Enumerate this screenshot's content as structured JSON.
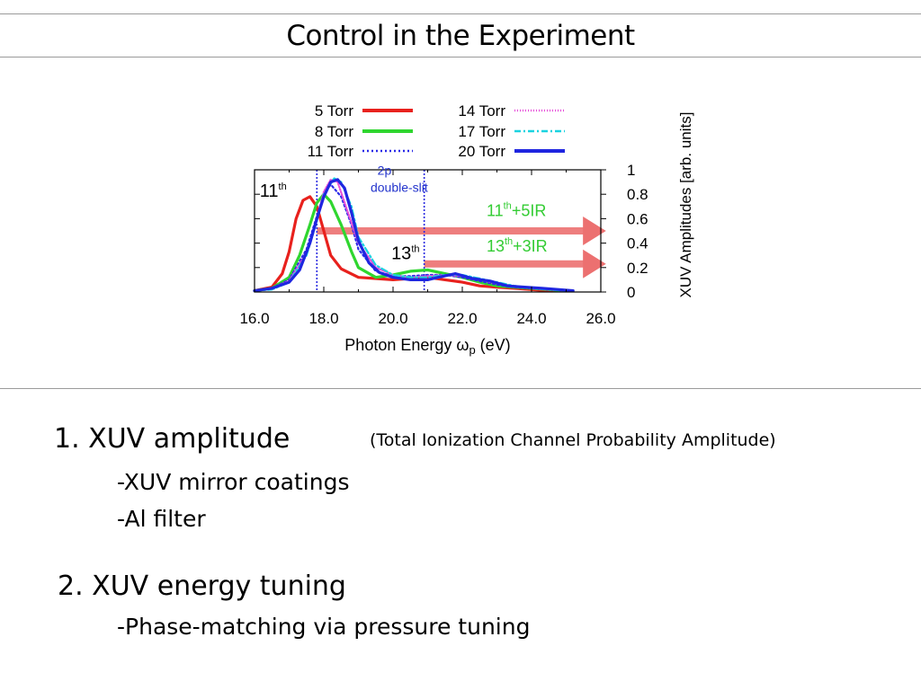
{
  "slide": {
    "title": "Control in the Experiment",
    "points": [
      {
        "heading": "1. XUV amplitude",
        "note": "(Total Ionization Channel Probability Amplitude)",
        "items": [
          "-XUV mirror coatings",
          "-Al filter"
        ]
      },
      {
        "heading": "2. XUV energy tuning",
        "items": [
          "-Phase-matching via pressure tuning"
        ]
      }
    ]
  },
  "chart_data": {
    "type": "line",
    "xlabel": "Photon Energy ω_p (eV)",
    "ylabel": "XUV Amplitudes [arb. units]",
    "xlim": [
      16.0,
      26.0
    ],
    "ylim": [
      0,
      1
    ],
    "xticks": [
      "16.0",
      "18.0",
      "20.0",
      "22.0",
      "24.0",
      "26.0"
    ],
    "yticks": [
      "0",
      "0.2",
      "0.4",
      "0.6",
      "0.8",
      "1"
    ],
    "vlines": [
      17.8,
      20.9
    ],
    "series": [
      {
        "name": "5 Torr",
        "color": "#e8211d",
        "dash": "solid",
        "x": [
          16.0,
          16.5,
          16.8,
          17.0,
          17.2,
          17.4,
          17.6,
          17.8,
          18.0,
          18.2,
          18.5,
          19.0,
          19.5,
          20.0,
          20.5,
          21.0,
          21.5,
          22.0,
          22.5,
          23.0,
          23.5,
          24.0,
          24.5,
          25.0
        ],
        "y": [
          0.01,
          0.04,
          0.15,
          0.33,
          0.6,
          0.75,
          0.78,
          0.7,
          0.5,
          0.3,
          0.19,
          0.12,
          0.11,
          0.1,
          0.11,
          0.12,
          0.1,
          0.08,
          0.05,
          0.04,
          0.03,
          0.02,
          0.01,
          0.01
        ]
      },
      {
        "name": "8 Torr",
        "color": "#2fd62f",
        "dash": "solid",
        "x": [
          16.0,
          16.5,
          17.0,
          17.3,
          17.6,
          17.8,
          18.0,
          18.2,
          18.5,
          18.8,
          19.0,
          19.5,
          20.0,
          20.5,
          21.0,
          21.5,
          22.0,
          22.5,
          23.0,
          23.5,
          24.0,
          24.5,
          25.0
        ],
        "y": [
          0.01,
          0.03,
          0.12,
          0.3,
          0.55,
          0.73,
          0.8,
          0.74,
          0.55,
          0.33,
          0.2,
          0.12,
          0.14,
          0.17,
          0.18,
          0.15,
          0.12,
          0.08,
          0.05,
          0.04,
          0.03,
          0.02,
          0.01
        ]
      },
      {
        "name": "11 Torr",
        "color": "#2b2be8",
        "dash": "2,3",
        "x": [
          16.0,
          16.5,
          17.0,
          17.5,
          17.8,
          18.0,
          18.2,
          18.5,
          18.8,
          19.0,
          19.5,
          20.0,
          20.5,
          21.0,
          21.5,
          22.0,
          22.5,
          23.0,
          23.5,
          24.0,
          24.5,
          25.0
        ],
        "y": [
          0.01,
          0.03,
          0.1,
          0.35,
          0.62,
          0.8,
          0.88,
          0.78,
          0.55,
          0.35,
          0.17,
          0.13,
          0.13,
          0.14,
          0.14,
          0.12,
          0.09,
          0.06,
          0.04,
          0.03,
          0.02,
          0.01
        ]
      },
      {
        "name": "14 Torr",
        "color": "#e64ed9",
        "dash": "1,2",
        "x": [
          16.0,
          16.5,
          17.0,
          17.5,
          17.8,
          18.0,
          18.2,
          18.4,
          18.7,
          19.0,
          19.5,
          20.0,
          20.5,
          21.0,
          21.5,
          22.0,
          22.5,
          23.0,
          23.5,
          24.0,
          24.5,
          25.0
        ],
        "y": [
          0.01,
          0.03,
          0.09,
          0.32,
          0.6,
          0.82,
          0.92,
          0.9,
          0.65,
          0.4,
          0.2,
          0.14,
          0.12,
          0.13,
          0.14,
          0.13,
          0.1,
          0.07,
          0.05,
          0.03,
          0.02,
          0.01
        ]
      },
      {
        "name": "17 Torr",
        "color": "#19d3e0",
        "dash": "7,3,2,3",
        "x": [
          16.0,
          16.5,
          17.0,
          17.5,
          17.8,
          18.0,
          18.3,
          18.5,
          18.8,
          19.0,
          19.5,
          20.0,
          20.5,
          21.0,
          21.5,
          22.0,
          22.5,
          23.0,
          23.5,
          24.0,
          24.5,
          25.0
        ],
        "y": [
          0.01,
          0.02,
          0.08,
          0.3,
          0.58,
          0.8,
          0.93,
          0.9,
          0.7,
          0.45,
          0.22,
          0.14,
          0.12,
          0.12,
          0.14,
          0.14,
          0.11,
          0.08,
          0.05,
          0.03,
          0.02,
          0.01
        ]
      },
      {
        "name": "20 Torr",
        "color": "#1f26e0",
        "dash": "solid",
        "x": [
          16.0,
          16.5,
          17.0,
          17.3,
          17.6,
          17.8,
          18.0,
          18.2,
          18.4,
          18.6,
          18.8,
          19.0,
          19.3,
          19.6,
          20.0,
          20.5,
          21.0,
          21.3,
          21.8,
          22.3,
          22.8,
          23.3,
          23.8,
          24.3,
          24.8,
          25.2
        ],
        "y": [
          0.01,
          0.03,
          0.08,
          0.18,
          0.4,
          0.6,
          0.78,
          0.9,
          0.92,
          0.85,
          0.65,
          0.42,
          0.24,
          0.16,
          0.12,
          0.1,
          0.1,
          0.12,
          0.15,
          0.11,
          0.09,
          0.05,
          0.04,
          0.03,
          0.02,
          0.01
        ]
      }
    ],
    "annotations": [
      {
        "text": "11",
        "sup": "th",
        "color": "#000000",
        "x": 16.15,
        "y": 0.78
      },
      {
        "text": "13",
        "sup": "th",
        "color": "#000000",
        "x": 19.95,
        "y": 0.27
      },
      {
        "text": "2p",
        "color": "#2233cc",
        "x": 19.55,
        "y": 0.96
      },
      {
        "text": "double-slit",
        "color": "#2233cc",
        "x": 19.35,
        "y": 0.82
      },
      {
        "text": "11",
        "sup": "th",
        "tail": "+5IR",
        "color": "#33cc33",
        "x": 22.7,
        "y": 0.62
      },
      {
        "text": "13",
        "sup": "th",
        "tail": "+3IR",
        "color": "#33cc33",
        "x": 22.7,
        "y": 0.33
      }
    ],
    "arrows": [
      {
        "x_start": 17.8,
        "x_end": 25.9,
        "y": 0.5
      },
      {
        "x_start": 20.9,
        "x_end": 25.9,
        "y": 0.23
      }
    ]
  }
}
